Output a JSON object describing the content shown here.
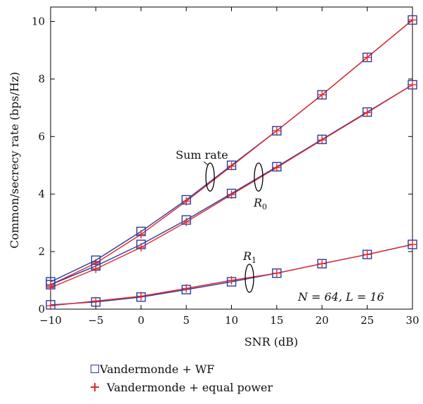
{
  "chart_data": {
    "type": "line",
    "xlabel": "SNR (dB)",
    "ylabel": "Common/secrecy rate (bps/Hz)",
    "xlim": [
      -10,
      30
    ],
    "ylim": [
      0,
      10.5
    ],
    "xticks": [
      -10,
      -5,
      0,
      5,
      10,
      15,
      20,
      25,
      30
    ],
    "yticks": [
      0,
      2,
      4,
      6,
      8,
      10
    ],
    "x": [
      -10,
      -5,
      0,
      5,
      10,
      15,
      20,
      25,
      30
    ],
    "series": [
      {
        "name": "Vandermonde + WF",
        "group": "sum",
        "marker": "square",
        "color": "#2b3c9b",
        "values": [
          0.95,
          1.7,
          2.7,
          3.8,
          5.0,
          6.2,
          7.45,
          8.75,
          10.05
        ]
      },
      {
        "name": "Vandermonde + equal power",
        "group": "sum",
        "marker": "plus",
        "color": "#e2282a",
        "values": [
          0.85,
          1.6,
          2.6,
          3.75,
          4.97,
          6.2,
          7.45,
          8.75,
          10.05
        ]
      },
      {
        "name": "Vandermonde + WF",
        "group": "R0",
        "marker": "square",
        "color": "#2b3c9b",
        "values": [
          0.85,
          1.5,
          2.25,
          3.1,
          4.02,
          4.95,
          5.9,
          6.85,
          7.8
        ]
      },
      {
        "name": "Vandermonde + equal power",
        "group": "R0",
        "marker": "plus",
        "color": "#e2282a",
        "values": [
          0.75,
          1.4,
          2.15,
          3.03,
          3.98,
          4.92,
          5.88,
          6.83,
          7.8
        ]
      },
      {
        "name": "Vandermonde + WF",
        "group": "R1",
        "marker": "square",
        "color": "#2b3c9b",
        "values": [
          0.15,
          0.25,
          0.42,
          0.68,
          0.95,
          1.25,
          1.58,
          1.9,
          2.25
        ]
      },
      {
        "name": "Vandermonde + equal power",
        "group": "R1",
        "marker": "plus",
        "color": "#e2282a",
        "values": [
          0.12,
          0.28,
          0.45,
          0.72,
          1.0,
          1.25,
          1.58,
          1.9,
          2.25
        ]
      }
    ],
    "annotations": {
      "sum_rate": "Sum rate",
      "r0_base": "R",
      "r0_sub": "0",
      "r1_base": "R",
      "r1_sub": "1",
      "params": "N = 64, L = 16"
    },
    "legend": [
      {
        "label": "Vandermonde + WF",
        "marker": "square",
        "color": "#2b3c9b"
      },
      {
        "label": "Vandermonde + equal power",
        "marker": "plus",
        "color": "#e2282a"
      }
    ],
    "legend_position": "below",
    "grid": false
  }
}
